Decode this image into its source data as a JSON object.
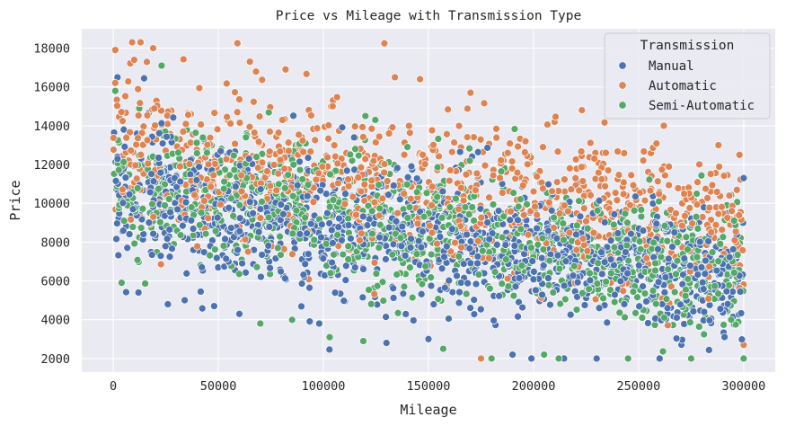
{
  "chart_data": {
    "type": "scatter",
    "title": "Price vs Mileage with Transmission Type",
    "xlabel": "Mileage",
    "ylabel": "Price",
    "xlim": [
      -15000,
      315000
    ],
    "ylim": [
      1300,
      19000
    ],
    "x_ticks": [
      0,
      50000,
      100000,
      150000,
      200000,
      250000,
      300000
    ],
    "y_ticks": [
      2000,
      4000,
      6000,
      8000,
      10000,
      12000,
      14000,
      16000,
      18000
    ],
    "x_tick_labels": [
      "0",
      "50000",
      "100000",
      "150000",
      "200000",
      "250000",
      "300000"
    ],
    "y_tick_labels": [
      "2000",
      "4000",
      "6000",
      "8000",
      "10000",
      "12000",
      "14000",
      "16000",
      "18000"
    ],
    "grid": true,
    "background": "#eaeaf2",
    "legend": {
      "title": "Transmission",
      "placement": "top-right"
    },
    "series": [
      {
        "name": "Manual",
        "color": "#4c72b0",
        "trend": {
          "start_center": 10500,
          "end_center": 6000,
          "start_spread": 3300,
          "end_spread": 2600
        },
        "points_note": "dense cloud over mileage 0–300000",
        "samples": [
          [
            2000,
            16500
          ],
          [
            5000,
            13800
          ],
          [
            12000,
            5400
          ],
          [
            26000,
            4800
          ],
          [
            34000,
            5000
          ],
          [
            48000,
            4700
          ],
          [
            60000,
            4300
          ],
          [
            98000,
            3800
          ],
          [
            130000,
            2800
          ],
          [
            150000,
            3000
          ],
          [
            190000,
            2200
          ],
          [
            230000,
            2000
          ],
          [
            260000,
            2000
          ],
          [
            300000,
            2000
          ],
          [
            280000,
            6500
          ],
          [
            300000,
            11300
          ]
        ]
      },
      {
        "name": "Automatic",
        "color": "#dd8452",
        "trend": {
          "start_center": 12800,
          "end_center": 9000,
          "start_spread": 3600,
          "end_spread": 3200
        },
        "points_note": "cloud shifted higher in price",
        "samples": [
          [
            1000,
            17900
          ],
          [
            9000,
            18300
          ],
          [
            13000,
            18300
          ],
          [
            19000,
            18000
          ],
          [
            65000,
            17300
          ],
          [
            82000,
            16900
          ],
          [
            134000,
            16500
          ],
          [
            146000,
            16400
          ],
          [
            170000,
            15700
          ],
          [
            210000,
            14200
          ],
          [
            223000,
            14800
          ],
          [
            262000,
            14000
          ],
          [
            288000,
            13000
          ],
          [
            298000,
            12500
          ],
          [
            175000,
            2000
          ],
          [
            300000,
            2700
          ]
        ]
      },
      {
        "name": "Semi-Automatic",
        "color": "#55a868",
        "trend": {
          "start_center": 11000,
          "end_center": 6200,
          "start_spread": 3400,
          "end_spread": 2700
        },
        "points_note": "mixed through the middle of the cloud",
        "samples": [
          [
            1000,
            15800
          ],
          [
            4000,
            5900
          ],
          [
            23000,
            17100
          ],
          [
            70000,
            3800
          ],
          [
            103000,
            3100
          ],
          [
            119000,
            2900
          ],
          [
            157000,
            2500
          ],
          [
            180000,
            2000
          ],
          [
            205000,
            2200
          ],
          [
            212000,
            2000
          ],
          [
            245000,
            2000
          ],
          [
            275000,
            2000
          ],
          [
            300000,
            2000
          ],
          [
            292000,
            9900
          ],
          [
            120000,
            14500
          ],
          [
            140000,
            12900
          ]
        ]
      }
    ]
  }
}
